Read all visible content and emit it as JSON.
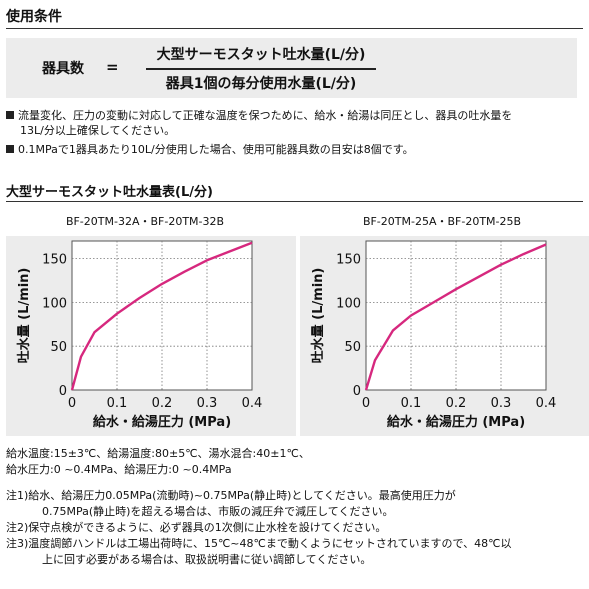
{
  "section_title": "使用条件",
  "formula": {
    "lhs": "器具数",
    "eq": "=",
    "numerator": "大型サーモスタット吐水量(L/分)",
    "denominator": "器具1個の毎分使用水量(L/分)"
  },
  "notes": [
    "流量変化、圧力の変動に対応して正確な温度を保つために、給水・給湯は同圧とし、器具の吐水量を",
    "13L/分以上確保してください。",
    "0.1MPaで1器具あたり10L/分使用した場合、使用可能器具数の目安は8個です。"
  ],
  "chart_section_title": "大型サーモスタット吐水量表(L/分)",
  "chart_data": [
    {
      "type": "line",
      "title": "BF-20TM-32A・BF-20TM-32B",
      "xlabel": "給水・給湯圧力 (MPa)",
      "ylabel": "吐水量 (L/min)",
      "xlim": [
        0,
        0.4
      ],
      "ylim": [
        0,
        170
      ],
      "xticks": [
        "0",
        "0.1",
        "0.2",
        "0.3",
        "0.4"
      ],
      "yticks": [
        "0",
        "50",
        "100",
        "150"
      ],
      "grid": "dotted",
      "line_color": "#d6287e",
      "series": [
        {
          "x": [
            0,
            0.02,
            0.05,
            0.1,
            0.15,
            0.2,
            0.25,
            0.3,
            0.35,
            0.4
          ],
          "values": [
            0,
            38,
            66,
            87,
            105,
            121,
            135,
            148,
            158,
            168
          ]
        }
      ]
    },
    {
      "type": "line",
      "title": "BF-20TM-25A・BF-20TM-25B",
      "xlabel": "給水・給湯圧力 (MPa)",
      "ylabel": "吐水量 (L/min)",
      "xlim": [
        0,
        0.4
      ],
      "ylim": [
        0,
        170
      ],
      "xticks": [
        "0",
        "0.1",
        "0.2",
        "0.3",
        "0.4"
      ],
      "yticks": [
        "0",
        "50",
        "100",
        "150"
      ],
      "grid": "dotted",
      "line_color": "#d6287e",
      "series": [
        {
          "x": [
            0,
            0.02,
            0.06,
            0.1,
            0.15,
            0.2,
            0.25,
            0.3,
            0.35,
            0.4
          ],
          "values": [
            0,
            34,
            68,
            85,
            100,
            115,
            129,
            143,
            155,
            166
          ]
        }
      ]
    }
  ],
  "conditions": [
    "給水温度:15±3℃、給湯温度:80±5℃、湯水混合:40±1℃、",
    "給水圧力:0 ~0.4MPa、給湯圧力:0 ~0.4MPa"
  ],
  "footnotes": [
    "注1)給水、給湯圧力0.05MPa(流動時)~0.75MPa(静止時)としてください。最高使用圧力が",
    "0.75MPa(静止時)を超える場合は、市販の減圧弁で減圧してください。",
    "注2)保守点検ができるように、必ず器具の1次側に止水栓を設けてください。",
    "注3)温度調節ハンドルは工場出荷時に、15℃~48℃まで動くようにセットされていますので、48℃以",
    "上に回す必要がある場合は、取扱説明書に従い調節してください。"
  ]
}
